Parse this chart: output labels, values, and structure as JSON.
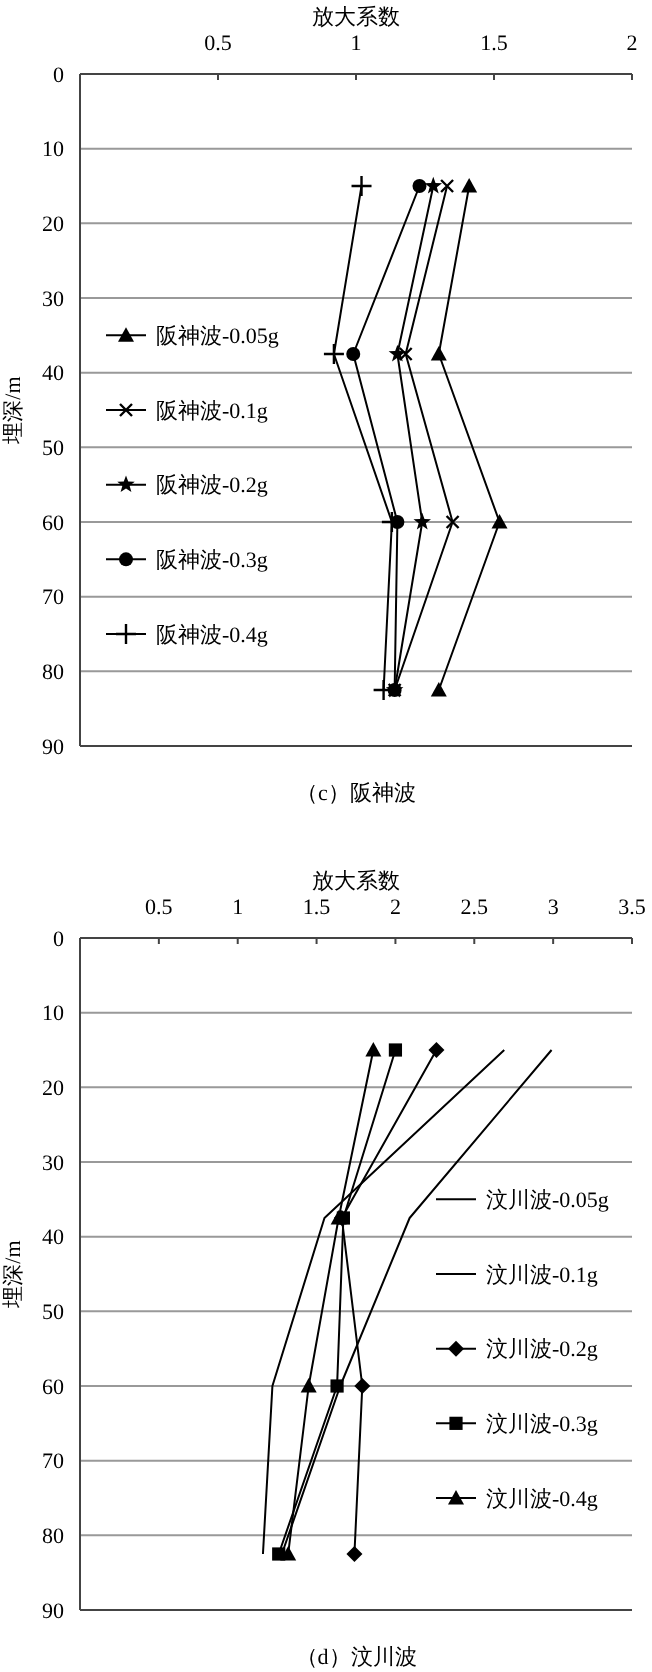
{
  "chart_data": [
    {
      "type": "line",
      "title": "（c）阪神波",
      "xlabel": "放大系数",
      "ylabel": "埋深/m",
      "xlim": [
        0,
        2
      ],
      "xticks": [
        0.5,
        1,
        1.5,
        2
      ],
      "ylim": [
        90,
        0
      ],
      "yticks": [
        0,
        10,
        20,
        30,
        40,
        50,
        60,
        70,
        80,
        90
      ],
      "grid": "y",
      "legend": "left",
      "series": [
        {
          "name": "阪神波-0.05g",
          "color": "#000000",
          "marker": "triangle",
          "x": [
            1.41,
            1.3,
            1.52,
            1.3
          ],
          "values": [
            15,
            37.5,
            60,
            82.5
          ]
        },
        {
          "name": "阪神波-0.1g",
          "color": "#000000",
          "marker": "x",
          "x": [
            1.33,
            1.18,
            1.35,
            1.14
          ],
          "values": [
            15,
            37.5,
            60,
            82.5
          ]
        },
        {
          "name": "阪神波-0.2g",
          "color": "#000000",
          "marker": "star",
          "x": [
            1.28,
            1.15,
            1.24,
            1.14
          ],
          "values": [
            15,
            37.5,
            60,
            82.5
          ]
        },
        {
          "name": "阪神波-0.3g",
          "color": "#000000",
          "marker": "circle",
          "x": [
            1.23,
            0.99,
            1.15,
            1.14
          ],
          "values": [
            15,
            37.5,
            60,
            82.5
          ]
        },
        {
          "name": "阪神波-0.4g",
          "color": "#000000",
          "marker": "cross",
          "x": [
            1.02,
            0.92,
            1.13,
            1.1
          ],
          "values": [
            15,
            37.5,
            60,
            82.5
          ]
        }
      ]
    },
    {
      "type": "line",
      "title": "（d）汶川波",
      "xlabel": "放大系数",
      "ylabel": "埋深/m",
      "xlim": [
        0,
        3.5
      ],
      "xticks": [
        0.5,
        1,
        1.5,
        2,
        2.5,
        3,
        3.5
      ],
      "ylim": [
        90,
        0
      ],
      "yticks": [
        0,
        10,
        20,
        30,
        40,
        50,
        60,
        70,
        80,
        90
      ],
      "grid": "y",
      "legend": "right",
      "series": [
        {
          "name": "汶川波-0.05g",
          "color": "#000000",
          "marker": "none",
          "x": [
            2.69,
            1.55,
            1.22,
            1.16
          ],
          "values": [
            15,
            37.5,
            60,
            82.5
          ]
        },
        {
          "name": "汶川波-0.1g",
          "color": "#000000",
          "marker": "none",
          "x": [
            2.99,
            2.09,
            1.65,
            1.28
          ],
          "values": [
            15,
            37.5,
            60,
            82.5
          ]
        },
        {
          "name": "汶川波-0.2g",
          "color": "#000000",
          "marker": "diamond",
          "x": [
            2.26,
            1.66,
            1.79,
            1.74
          ],
          "values": [
            15,
            37.5,
            60,
            82.5
          ]
        },
        {
          "name": "汶川波-0.3g",
          "color": "#000000",
          "marker": "square",
          "x": [
            2.0,
            1.67,
            1.63,
            1.26
          ],
          "values": [
            15,
            37.5,
            60,
            82.5
          ]
        },
        {
          "name": "汶川波-0.4g",
          "color": "#000000",
          "marker": "triangle",
          "x": [
            1.86,
            1.64,
            1.45,
            1.32
          ],
          "values": [
            15,
            37.5,
            60,
            82.5
          ]
        }
      ]
    }
  ]
}
